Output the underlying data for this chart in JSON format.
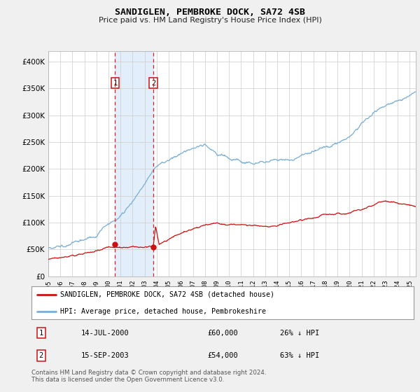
{
  "title": "SANDIGLEN, PEMBROKE DOCK, SA72 4SB",
  "subtitle": "Price paid vs. HM Land Registry's House Price Index (HPI)",
  "ylim": [
    0,
    420000
  ],
  "yticks": [
    0,
    50000,
    100000,
    150000,
    200000,
    250000,
    300000,
    350000,
    400000
  ],
  "hpi_color": "#7aaed6",
  "price_color": "#cc1111",
  "sale1_date_label": "14-JUL-2000",
  "sale1_price": 60000,
  "sale1_price_label": "£60,000",
  "sale1_hpi_label": "26% ↓ HPI",
  "sale1_year": 2000.54,
  "sale2_date_label": "15-SEP-2003",
  "sale2_price": 54000,
  "sale2_price_label": "£54,000",
  "sale2_hpi_label": "63% ↓ HPI",
  "sale2_year": 2003.71,
  "legend_label1": "SANDIGLEN, PEMBROKE DOCK, SA72 4SB (detached house)",
  "legend_label2": "HPI: Average price, detached house, Pembrokeshire",
  "footnote": "Contains HM Land Registry data © Crown copyright and database right 2024.\nThis data is licensed under the Open Government Licence v3.0.",
  "background_color": "#f0f0f0",
  "plot_bg_color": "#ffffff",
  "shade_color": "#d0e4f7",
  "shade_alpha": 0.6
}
